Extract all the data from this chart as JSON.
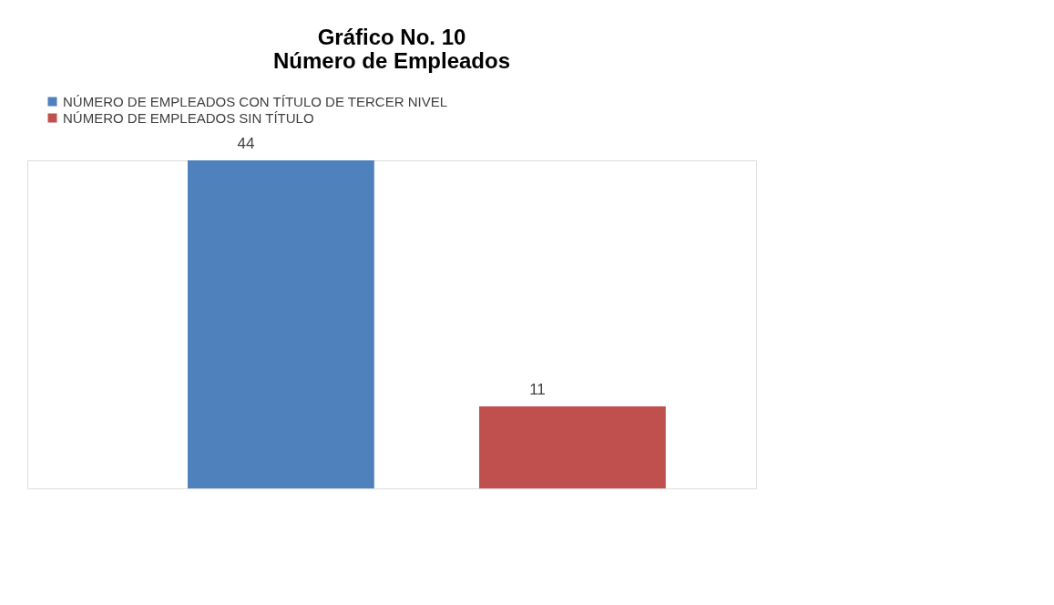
{
  "chart_data": {
    "type": "bar",
    "title": "Gráfico No. 10\nNúmero de Empleados",
    "categories": [
      null
    ],
    "series": [
      {
        "name": "NÚMERO DE EMPLEADOS CON TÍTULO DE TERCER NIVEL",
        "color": "#4f81bd",
        "values": [
          44
        ]
      },
      {
        "name": "NÚMERO DE EMPLEADOS SIN TÍTULO",
        "color": "#c0504d",
        "values": [
          11
        ]
      }
    ],
    "data_labels": true,
    "legend": "top",
    "grid": false
  }
}
